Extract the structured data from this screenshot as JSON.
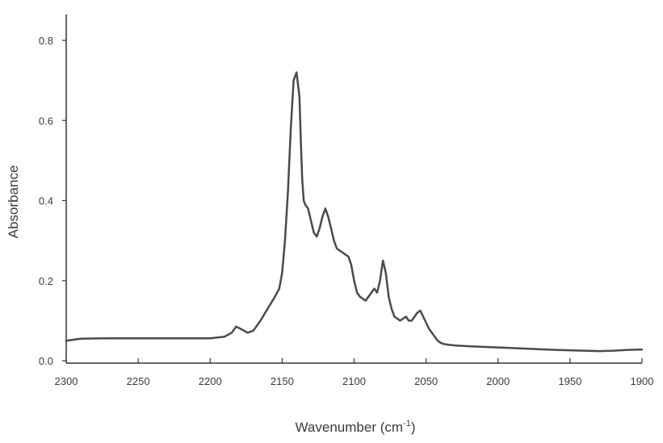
{
  "chart_data": {
    "type": "line",
    "xlabel_main": "Wavenumber (cm",
    "xlabel_sup": "-1",
    "xlabel_end": ")",
    "ylabel": "Absorbance",
    "xlim": [
      2300,
      1900
    ],
    "ylim": [
      0.0,
      0.8
    ],
    "x_reversed": true,
    "grid": false,
    "line_color": "#4a4a4a",
    "x_ticks": [
      2300,
      2250,
      2200,
      2150,
      2100,
      2050,
      2000,
      1950,
      1900
    ],
    "y_ticks": [
      0.0,
      0.2,
      0.4,
      0.6,
      0.8
    ],
    "y_tick_labels": [
      "0.0",
      "0.2",
      "0.4",
      "0.6",
      "0.8"
    ],
    "series": [
      {
        "x": [
          2300,
          2290,
          2270,
          2250,
          2230,
          2210,
          2200,
          2190,
          2185,
          2182,
          2178,
          2174,
          2170,
          2165,
          2160,
          2155,
          2152,
          2150,
          2148,
          2146,
          2144,
          2142,
          2140,
          2138,
          2137,
          2136,
          2135,
          2134,
          2132,
          2130,
          2128,
          2126,
          2124,
          2122,
          2120,
          2118,
          2116,
          2114,
          2112,
          2110,
          2108,
          2106,
          2104,
          2102,
          2100,
          2098,
          2096,
          2094,
          2092,
          2090,
          2088,
          2086,
          2084,
          2082,
          2080,
          2078,
          2076,
          2074,
          2072,
          2070,
          2068,
          2066,
          2064,
          2062,
          2060,
          2058,
          2056,
          2054,
          2052,
          2050,
          2048,
          2046,
          2044,
          2042,
          2040,
          2038,
          2035,
          2030,
          2020,
          2000,
          1980,
          1960,
          1940,
          1930,
          1920,
          1910,
          1900
        ],
        "y": [
          0.05,
          0.055,
          0.056,
          0.056,
          0.056,
          0.056,
          0.056,
          0.06,
          0.07,
          0.085,
          0.078,
          0.07,
          0.075,
          0.1,
          0.13,
          0.16,
          0.18,
          0.22,
          0.3,
          0.42,
          0.58,
          0.7,
          0.72,
          0.66,
          0.55,
          0.45,
          0.4,
          0.39,
          0.38,
          0.35,
          0.32,
          0.31,
          0.33,
          0.36,
          0.38,
          0.36,
          0.33,
          0.3,
          0.28,
          0.275,
          0.27,
          0.265,
          0.26,
          0.24,
          0.2,
          0.17,
          0.16,
          0.155,
          0.15,
          0.16,
          0.17,
          0.18,
          0.17,
          0.2,
          0.25,
          0.22,
          0.16,
          0.13,
          0.11,
          0.105,
          0.1,
          0.105,
          0.11,
          0.1,
          0.1,
          0.11,
          0.12,
          0.125,
          0.11,
          0.095,
          0.08,
          0.07,
          0.06,
          0.05,
          0.045,
          0.042,
          0.04,
          0.038,
          0.036,
          0.033,
          0.03,
          0.027,
          0.025,
          0.024,
          0.025,
          0.027,
          0.028
        ]
      }
    ]
  }
}
